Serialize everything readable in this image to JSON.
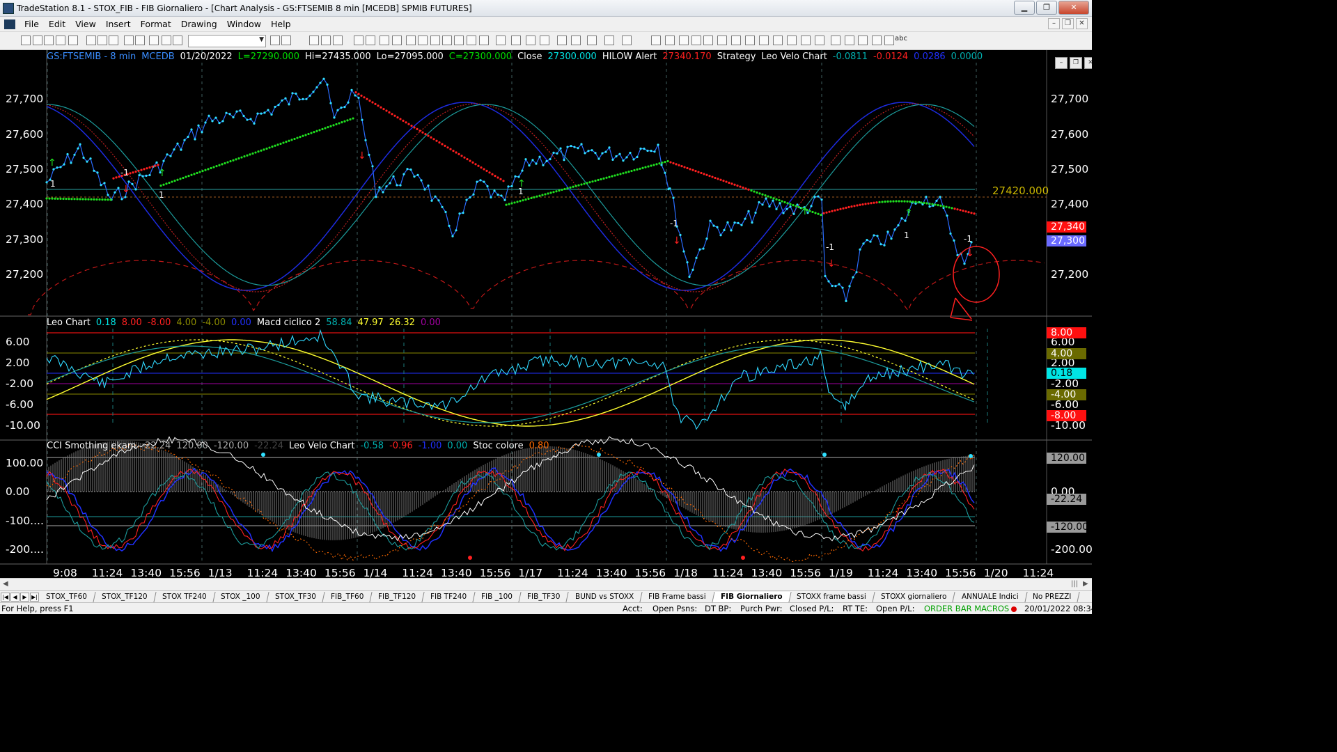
{
  "window": {
    "title": "TradeStation 8.1 - STOX_FIB - FIB Giornaliero - [Chart Analysis - GS:FTSEMIB  8 min  [MCEDB] SPMIB FUTURES]",
    "minimize": "▁",
    "maximize": "❐",
    "close": "✕"
  },
  "menu": [
    "File",
    "Edit",
    "View",
    "Insert",
    "Format",
    "Drawing",
    "Window",
    "Help"
  ],
  "toolbar": {
    "abc_label": "abc"
  },
  "price_pane": {
    "header": [
      {
        "text": "GS:FTSEMIB - 8 min",
        "color": "#3a8dff"
      },
      {
        "text": "MCEDB",
        "color": "#3a8dff"
      },
      {
        "text": "01/20/2022",
        "color": "#ffffff"
      },
      {
        "text": "L=27290.000",
        "color": "#00e000"
      },
      {
        "text": "Hi=27435.000",
        "color": "#ffffff"
      },
      {
        "text": "Lo=27095.000",
        "color": "#ffffff"
      },
      {
        "text": "C=27300.000",
        "color": "#00e000"
      },
      {
        "text": "Close",
        "color": "#ffffff"
      },
      {
        "text": "27300.000",
        "color": "#00e5e5"
      },
      {
        "text": "HILOW Alert",
        "color": "#ffffff"
      },
      {
        "text": "27340.170",
        "color": "#ff2020"
      },
      {
        "text": "Strategy",
        "color": "#ffffff"
      },
      {
        "text": "Leo Velo Chart",
        "color": "#ffffff"
      },
      {
        "text": "-0.0811",
        "color": "#00b0b0"
      },
      {
        "text": "-0.0124",
        "color": "#ff2020"
      },
      {
        "text": "0.0286",
        "color": "#2030ff"
      },
      {
        "text": "0.0000",
        "color": "#00b0b0"
      }
    ],
    "y_ticks": [
      "27,700",
      "27,600",
      "27,500",
      "27,400",
      "27,300",
      "27,200"
    ],
    "level_label": "27420.000",
    "tags": [
      {
        "text": "27,340",
        "bg": "#ff1010",
        "fg": "#ffffff"
      },
      {
        "text": "27,300",
        "bg": "#6a6aff",
        "fg": "#ffffff"
      }
    ],
    "signal_labels": [
      "1",
      "-1",
      "1",
      "1",
      "-1",
      "-1",
      "1",
      "-1"
    ]
  },
  "macd_pane": {
    "header": [
      {
        "text": "Leo Chart",
        "color": "#ffffff"
      },
      {
        "text": "0.18",
        "color": "#00e5e5"
      },
      {
        "text": "8.00",
        "color": "#ff2020"
      },
      {
        "text": "-8.00",
        "color": "#ff2020"
      },
      {
        "text": "4.00",
        "color": "#8a8a00"
      },
      {
        "text": "-4.00",
        "color": "#8a8a00"
      },
      {
        "text": "0.00",
        "color": "#2030ff"
      },
      {
        "text": "Macd ciclico 2",
        "color": "#ffffff"
      },
      {
        "text": "58.84",
        "color": "#00b0b0"
      },
      {
        "text": "47.97",
        "color": "#ffff30"
      },
      {
        "text": "26.32",
        "color": "#ffff30"
      },
      {
        "text": "0.00",
        "color": "#a000a0"
      }
    ],
    "y_ticks": [
      "6.00",
      "2.00",
      "-2.00",
      "-6.00",
      "-10.00"
    ],
    "right_ticks": [
      "6.00",
      "2.00",
      "-2.00",
      "-6.00",
      "-10.00"
    ],
    "tags": [
      {
        "text": "8.00",
        "bg": "#ff1010",
        "fg": "#ffffff"
      },
      {
        "text": "4.00",
        "bg": "#6a6a00",
        "fg": "#ffffff"
      },
      {
        "text": "0.18",
        "bg": "#00e5e5",
        "fg": "#000000"
      },
      {
        "text": "-4.00",
        "bg": "#6a6a00",
        "fg": "#ffffff"
      },
      {
        "text": "-8.00",
        "bg": "#ff1010",
        "fg": "#ffffff"
      }
    ]
  },
  "cci_pane": {
    "header": [
      {
        "text": "CCI Smothing ekam",
        "color": "#ffffff"
      },
      {
        "text": "-22.24",
        "color": "#aaaaaa"
      },
      {
        "text": "120.00",
        "color": "#aaaaaa"
      },
      {
        "text": "-120.00",
        "color": "#aaaaaa"
      },
      {
        "text": "-22.24",
        "color": "#444444"
      },
      {
        "text": "Leo Velo Chart",
        "color": "#ffffff"
      },
      {
        "text": "-0.58",
        "color": "#00b0b0"
      },
      {
        "text": "-0.96",
        "color": "#ff2020"
      },
      {
        "text": "-1.00",
        "color": "#2030ff"
      },
      {
        "text": "0.00",
        "color": "#00b0b0"
      },
      {
        "text": "Stoc colore",
        "color": "#ffffff"
      },
      {
        "text": "0.80",
        "color": "#ff6a00"
      }
    ],
    "y_ticks": [
      "100.00",
      "0.00",
      "-100....",
      "-200...."
    ],
    "right_ticks": [
      "100.00",
      "0.00",
      "-100.00",
      "-200.00"
    ],
    "tags": [
      {
        "text": "120.00",
        "bg": "#9a9a9a",
        "fg": "#000000"
      },
      {
        "text": "-22.24",
        "bg": "#9a9a9a",
        "fg": "#000000"
      },
      {
        "text": "-120.00",
        "bg": "#9a9a9a",
        "fg": "#000000"
      }
    ]
  },
  "x_ticks": [
    "9:08",
    "11:24",
    "13:40",
    "15:56",
    "1/13",
    "11:24",
    "13:40",
    "15:56",
    "1/14",
    "11:24",
    "13:40",
    "15:56",
    "1/17",
    "11:24",
    "13:40",
    "15:56",
    "1/18",
    "11:24",
    "13:40",
    "15:56",
    "1/19",
    "11:24",
    "13:40",
    "15:56",
    "1/20",
    "11:24"
  ],
  "workspace_tabs": [
    "STOX_TF60",
    "STOX_TF120",
    "STOX TF240",
    "STOX _100",
    "STOX_TF30",
    "FIB_TF60",
    "FIB_TF120",
    "FIB TF240",
    "FIB _100",
    "FIB_TF30",
    "BUND vs STOXX",
    "FIB Frame bassi",
    "FIB Giornaliero",
    "STOXX frame bassi",
    "STOXX giornaliero",
    "ANNUALE Indici",
    "No PREZZI"
  ],
  "active_tab": "FIB Giornaliero",
  "status": {
    "help": "For Help, press F1",
    "acct": "Acct:",
    "open_psns": "Open Psns:",
    "dt_bp": "DT BP:",
    "purch_pwr": "Purch Pwr:",
    "closed_pl": "Closed P/L:",
    "rt_te": "RT TE:",
    "open_pl": "Open P/L:",
    "order_bar": "ORDER BAR MACROS",
    "datetime": "20/01/2022 08:34"
  }
}
